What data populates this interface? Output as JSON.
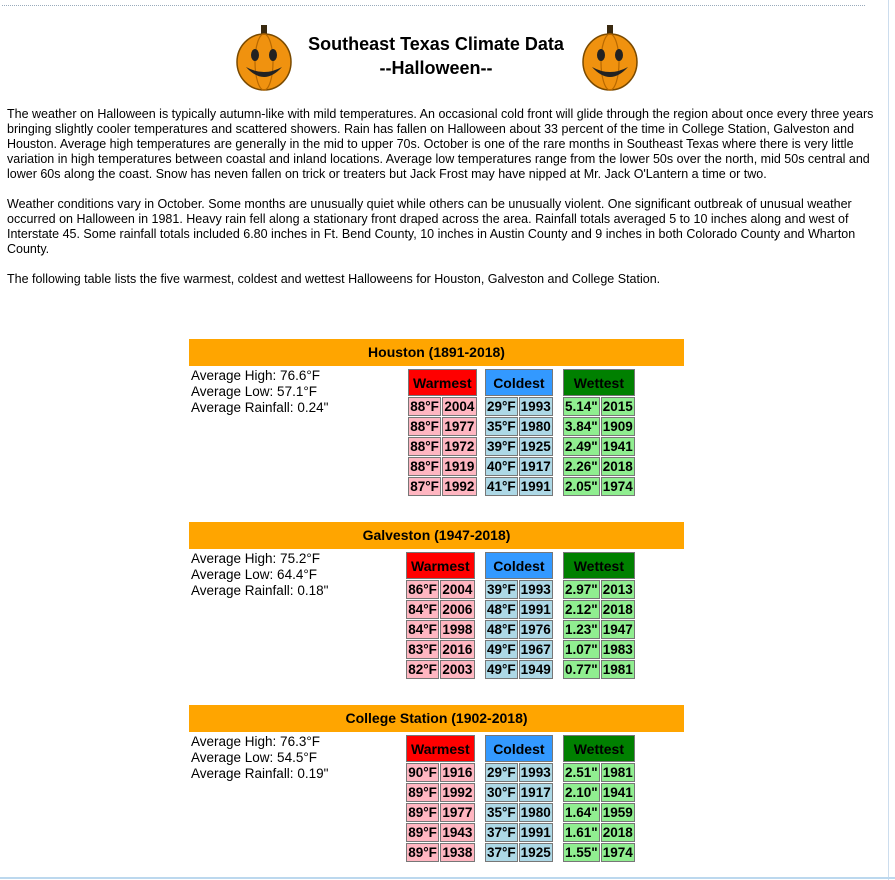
{
  "header": {
    "title_line1": "Southeast Texas Climate Data",
    "title_line2": "--Halloween--"
  },
  "paragraphs": [
    "The weather on Halloween is typically autumn-like with mild temperatures. An occasional cold front will glide through the region about once every three years bringing slightly cooler temperatures and scattered showers. Rain has fallen on Halloween about 33 percent of the time in College Station, Galveston and Houston. Average high temperatures are generally in the mid to upper 70s. October is one of the rare months in Southeast Texas where there is very little variation in high temperatures between coastal and inland locations. Average low temperatures range from the lower 50s over the north, mid 50s central and lower 60s along the coast. Snow has neven fallen on trick or treaters but Jack Frost may have nipped at Mr. Jack O'Lantern a time or two.",
    "Weather conditions vary in October. Some months are unusually quiet while others can be unusually violent. One significant outbreak of unusual weather occurred on Halloween in 1981. Heavy rain fell along a stationary front draped across the area. Rainfall totals averaged 5 to 10 inches along and west of Interstate 45. Some rainfall totals included 6.80 inches in Ft. Bend County, 10 inches in Austin County and 9 inches in both Colorado County and Wharton County.",
    "The following table lists the five warmest, coldest and wettest Halloweens for Houston, Galveston and College Station."
  ],
  "stations": [
    {
      "title": "Houston (1891-2018)",
      "averages": [
        "Average High: 76.6°F",
        "Average Low: 57.1°F",
        "Average Rainfall: 0.24\""
      ],
      "tables": [
        {
          "heading": "Warmest",
          "rows": [
            [
              "88°F",
              "2004"
            ],
            [
              "88°F",
              "1977"
            ],
            [
              "88°F",
              "1972"
            ],
            [
              "88°F",
              "1919"
            ],
            [
              "87°F",
              "1992"
            ]
          ]
        },
        {
          "heading": "Coldest",
          "rows": [
            [
              "29°F",
              "1993"
            ],
            [
              "35°F",
              "1980"
            ],
            [
              "39°F",
              "1925"
            ],
            [
              "40°F",
              "1917"
            ],
            [
              "41°F",
              "1991"
            ]
          ]
        },
        {
          "heading": "Wettest",
          "rows": [
            [
              "5.14\"",
              "2015"
            ],
            [
              "3.84\"",
              "1909"
            ],
            [
              "2.49\"",
              "1941"
            ],
            [
              "2.26\"",
              "2018"
            ],
            [
              "2.05\"",
              "1974"
            ]
          ]
        }
      ]
    },
    {
      "title": "Galveston (1947-2018)",
      "averages": [
        "Average High: 75.2°F",
        "Average Low: 64.4°F",
        "Average Rainfall: 0.18\""
      ],
      "tables": [
        {
          "heading": "Warmest",
          "rows": [
            [
              "86°F",
              "2004"
            ],
            [
              "84°F",
              "2006"
            ],
            [
              "84°F",
              "1998"
            ],
            [
              "83°F",
              "2016"
            ],
            [
              "82°F",
              "2003"
            ]
          ]
        },
        {
          "heading": "Coldest",
          "rows": [
            [
              "39°F",
              "1993"
            ],
            [
              "48°F",
              "1991"
            ],
            [
              "48°F",
              "1976"
            ],
            [
              "49°F",
              "1967"
            ],
            [
              "49°F",
              "1949"
            ]
          ]
        },
        {
          "heading": "Wettest",
          "rows": [
            [
              "2.97\"",
              "2013"
            ],
            [
              "2.12\"",
              "2018"
            ],
            [
              "1.23\"",
              "1947"
            ],
            [
              "1.07\"",
              "1983"
            ],
            [
              "0.77\"",
              "1981"
            ]
          ]
        }
      ]
    },
    {
      "title": "College Station (1902-2018)",
      "averages": [
        "Average High: 76.3°F",
        "Average Low: 54.5°F",
        "Average Rainfall: 0.19\""
      ],
      "tables": [
        {
          "heading": "Warmest",
          "rows": [
            [
              "90°F",
              "1916"
            ],
            [
              "89°F",
              "1992"
            ],
            [
              "89°F",
              "1977"
            ],
            [
              "89°F",
              "1943"
            ],
            [
              "89°F",
              "1938"
            ]
          ]
        },
        {
          "heading": "Coldest",
          "rows": [
            [
              "29°F",
              "1993"
            ],
            [
              "30°F",
              "1917"
            ],
            [
              "35°F",
              "1980"
            ],
            [
              "37°F",
              "1991"
            ],
            [
              "37°F",
              "1925"
            ]
          ]
        },
        {
          "heading": "Wettest",
          "rows": [
            [
              "2.51\"",
              "1981"
            ],
            [
              "2.10\"",
              "1941"
            ],
            [
              "1.64\"",
              "1959"
            ],
            [
              "1.61\"",
              "2018"
            ],
            [
              "1.55\"",
              "1974"
            ]
          ]
        }
      ]
    }
  ]
}
